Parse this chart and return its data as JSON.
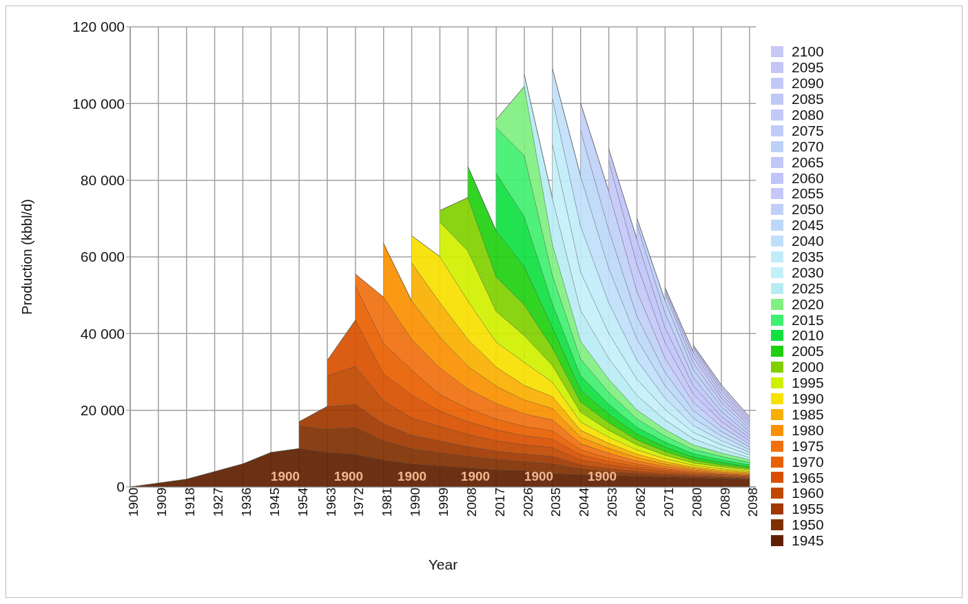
{
  "chart_data": {
    "type": "area",
    "stacked": true,
    "xlabel": "Year",
    "ylabel": "Production (kbbl/d)",
    "x": [
      1900,
      1909,
      1918,
      1927,
      1936,
      1945,
      1954,
      1963,
      1972,
      1981,
      1990,
      1999,
      2008,
      2017,
      2026,
      2035,
      2044,
      2053,
      2062,
      2071,
      2080,
      2089,
      2098
    ],
    "xlim": [
      1900,
      2100
    ],
    "xticks": [
      1900,
      1909,
      1918,
      1927,
      1936,
      1945,
      1954,
      1963,
      1972,
      1981,
      1990,
      1999,
      2008,
      2017,
      2026,
      2035,
      2044,
      2053,
      2062,
      2071,
      2080,
      2089,
      2098
    ],
    "ylim": [
      0,
      120000
    ],
    "yticks": [
      {
        "value": 0,
        "label": "0"
      },
      {
        "value": 20000,
        "label": "20 000"
      },
      {
        "value": 40000,
        "label": "40 000"
      },
      {
        "value": 60000,
        "label": "60 000"
      },
      {
        "value": 80000,
        "label": "80 000"
      },
      {
        "value": 100000,
        "label": "100 000"
      },
      {
        "value": 120000,
        "label": "120 000"
      }
    ],
    "grid": true,
    "legend": "right",
    "annotations": [
      "1900",
      "1900",
      "1900",
      "1900",
      "1900",
      "1900"
    ],
    "series": [
      {
        "name": "1945",
        "color": "#602000",
        "values": [
          0,
          1000,
          2000,
          4000,
          6000,
          9000,
          10000,
          9000,
          8500,
          7000,
          6000,
          5500,
          5000,
          4500,
          4200,
          3500,
          3200,
          3000,
          2800,
          2600,
          2400,
          2200,
          2000
        ]
      },
      {
        "name": "1950",
        "color": "#803000",
        "values": [
          null,
          null,
          null,
          null,
          null,
          null,
          6000,
          6000,
          7000,
          5000,
          4000,
          3500,
          3000,
          2700,
          2400,
          2500,
          1500,
          1000,
          700,
          500,
          400,
          300,
          200
        ]
      },
      {
        "name": "1955",
        "color": "#a03800",
        "values": [
          null,
          null,
          null,
          null,
          null,
          null,
          1000,
          6000,
          6000,
          4500,
          3500,
          3000,
          2500,
          2200,
          2000,
          2000,
          1100,
          800,
          600,
          400,
          300,
          200,
          200
        ]
      },
      {
        "name": "1960",
        "color": "#c04800",
        "values": [
          null,
          null,
          null,
          null,
          null,
          null,
          null,
          8000,
          10000,
          6000,
          4500,
          3800,
          3200,
          2700,
          2400,
          2300,
          1300,
          1000,
          700,
          500,
          300,
          300,
          200
        ]
      },
      {
        "name": "1965",
        "color": "#d85000",
        "values": [
          null,
          null,
          null,
          null,
          null,
          null,
          null,
          4000,
          12000,
          7000,
          6000,
          4000,
          3300,
          2800,
          2400,
          2200,
          1300,
          900,
          600,
          400,
          300,
          200,
          200
        ]
      },
      {
        "name": "1970",
        "color": "#e86000",
        "values": [
          null,
          null,
          null,
          null,
          null,
          null,
          null,
          null,
          9000,
          8000,
          6500,
          4300,
          3500,
          2900,
          2400,
          2200,
          1300,
          900,
          600,
          400,
          300,
          200,
          200
        ]
      },
      {
        "name": "1975",
        "color": "#f07010",
        "values": [
          null,
          null,
          null,
          null,
          null,
          null,
          null,
          null,
          3000,
          12000,
          8000,
          7000,
          5000,
          4000,
          3300,
          2800,
          1600,
          1200,
          800,
          600,
          400,
          300,
          200
        ]
      },
      {
        "name": "1980",
        "color": "#f89000",
        "values": [
          null,
          null,
          null,
          null,
          null,
          null,
          null,
          null,
          null,
          14000,
          10000,
          8000,
          6000,
          4500,
          3600,
          3000,
          1700,
          1300,
          900,
          600,
          400,
          300,
          300
        ]
      },
      {
        "name": "1985",
        "color": "#f8b000",
        "values": [
          null,
          null,
          null,
          null,
          null,
          null,
          null,
          null,
          null,
          null,
          10000,
          9000,
          7000,
          5000,
          3800,
          3100,
          1800,
          1300,
          900,
          600,
          400,
          400,
          300
        ]
      },
      {
        "name": "1990",
        "color": "#f8e000",
        "values": [
          null,
          null,
          null,
          null,
          null,
          null,
          null,
          null,
          null,
          null,
          7000,
          12000,
          10000,
          6500,
          6000,
          3700,
          2200,
          1600,
          1100,
          800,
          500,
          400,
          300
        ]
      },
      {
        "name": "1995",
        "color": "#d0f000",
        "values": [
          null,
          null,
          null,
          null,
          null,
          null,
          null,
          null,
          null,
          null,
          null,
          9000,
          13000,
          8000,
          7000,
          4400,
          2500,
          1800,
          1300,
          900,
          600,
          500,
          400
        ]
      },
      {
        "name": "2000",
        "color": "#80d000",
        "values": [
          null,
          null,
          null,
          null,
          null,
          null,
          null,
          null,
          null,
          null,
          null,
          3000,
          14000,
          9000,
          8000,
          4600,
          2700,
          2000,
          1300,
          1000,
          700,
          500,
          400
        ]
      },
      {
        "name": "2005",
        "color": "#20d010",
        "values": [
          null,
          null,
          null,
          null,
          null,
          null,
          null,
          null,
          null,
          null,
          null,
          null,
          8000,
          12000,
          10000,
          5300,
          3100,
          2200,
          1500,
          1100,
          800,
          600,
          400
        ]
      },
      {
        "name": "2010",
        "color": "#10e040",
        "values": [
          null,
          null,
          null,
          null,
          null,
          null,
          null,
          null,
          null,
          null,
          null,
          null,
          null,
          15000,
          13000,
          6200,
          3700,
          2600,
          1800,
          1300,
          900,
          700,
          500
        ]
      },
      {
        "name": "2015",
        "color": "#40f070",
        "values": [
          null,
          null,
          null,
          null,
          null,
          null,
          null,
          null,
          null,
          null,
          null,
          null,
          null,
          12000,
          16000,
          7400,
          4400,
          3100,
          2200,
          1600,
          1100,
          900,
          600
        ]
      },
      {
        "name": "2020",
        "color": "#80f080",
        "values": [
          null,
          null,
          null,
          null,
          null,
          null,
          null,
          null,
          null,
          null,
          null,
          null,
          null,
          2000,
          18000,
          8100,
          4700,
          3400,
          2300,
          1700,
          1200,
          900,
          700
        ]
      },
      {
        "name": "2025",
        "color": "#b8ecf4",
        "values": [
          null,
          null,
          null,
          null,
          null,
          null,
          null,
          null,
          null,
          null,
          null,
          null,
          null,
          null,
          3000,
          12000,
          8000,
          5500,
          3800,
          2500,
          1600,
          1000,
          600
        ]
      },
      {
        "name": "2030",
        "color": "#c4f0f8",
        "values": [
          null,
          null,
          null,
          null,
          null,
          null,
          null,
          null,
          null,
          null,
          null,
          null,
          null,
          null,
          null,
          14000,
          10000,
          6500,
          4200,
          2700,
          1700,
          1100,
          700
        ]
      },
      {
        "name": "2035",
        "color": "#c0ecfa",
        "values": [
          null,
          null,
          null,
          null,
          null,
          null,
          null,
          null,
          null,
          null,
          null,
          null,
          null,
          null,
          null,
          12000,
          12000,
          8000,
          5000,
          3000,
          1800,
          1100,
          700
        ]
      },
      {
        "name": "2040",
        "color": "#c0e0fa",
        "values": [
          null,
          null,
          null,
          null,
          null,
          null,
          null,
          null,
          null,
          null,
          null,
          null,
          null,
          null,
          null,
          7700,
          13000,
          9000,
          5500,
          3200,
          1900,
          1200,
          700
        ]
      },
      {
        "name": "2045",
        "color": "#bcd8f8",
        "values": [
          null,
          null,
          null,
          null,
          null,
          null,
          null,
          null,
          null,
          null,
          null,
          null,
          null,
          null,
          null,
          null,
          12000,
          10000,
          6000,
          3500,
          2000,
          1200,
          700
        ]
      },
      {
        "name": "2050",
        "color": "#c0d0f8",
        "values": [
          null,
          null,
          null,
          null,
          null,
          null,
          null,
          null,
          null,
          null,
          null,
          null,
          null,
          null,
          null,
          null,
          7000,
          10000,
          6500,
          3700,
          2100,
          1300,
          700
        ]
      },
      {
        "name": "2055",
        "color": "#c4c8f8",
        "values": [
          null,
          null,
          null,
          null,
          null,
          null,
          null,
          null,
          null,
          null,
          null,
          null,
          null,
          null,
          null,
          null,
          null,
          8000,
          7000,
          4000,
          2200,
          1300,
          800
        ]
      },
      {
        "name": "2060",
        "color": "#c0c4f8",
        "values": [
          null,
          null,
          null,
          null,
          null,
          null,
          null,
          null,
          null,
          null,
          null,
          null,
          null,
          null,
          null,
          null,
          null,
          3000,
          6500,
          4000,
          2200,
          1300,
          800
        ]
      },
      {
        "name": "2065",
        "color": "#c0c8f8",
        "values": [
          null,
          null,
          null,
          null,
          null,
          null,
          null,
          null,
          null,
          null,
          null,
          null,
          null,
          null,
          null,
          null,
          null,
          null,
          4000,
          3800,
          2100,
          1300,
          800
        ]
      },
      {
        "name": "2070",
        "color": "#bcd0f8",
        "values": [
          null,
          null,
          null,
          null,
          null,
          null,
          null,
          null,
          null,
          null,
          null,
          null,
          null,
          null,
          null,
          null,
          null,
          null,
          1500,
          3200,
          2000,
          1200,
          800
        ]
      },
      {
        "name": "2075",
        "color": "#c0ccf8",
        "values": [
          null,
          null,
          null,
          null,
          null,
          null,
          null,
          null,
          null,
          null,
          null,
          null,
          null,
          null,
          null,
          null,
          null,
          null,
          null,
          2000,
          1800,
          1200,
          700
        ]
      },
      {
        "name": "2080",
        "color": "#c4c8fa",
        "values": [
          null,
          null,
          null,
          null,
          null,
          null,
          null,
          null,
          null,
          null,
          null,
          null,
          null,
          null,
          null,
          null,
          null,
          null,
          null,
          900,
          1600,
          1100,
          700
        ]
      },
      {
        "name": "2085",
        "color": "#c0c8f8",
        "values": [
          null,
          null,
          null,
          null,
          null,
          null,
          null,
          null,
          null,
          null,
          null,
          null,
          null,
          null,
          null,
          null,
          null,
          null,
          null,
          500,
          1200,
          1000,
          700
        ]
      },
      {
        "name": "2090",
        "color": "#c4c8f8",
        "values": [
          null,
          null,
          null,
          null,
          null,
          null,
          null,
          null,
          null,
          null,
          null,
          null,
          null,
          null,
          null,
          null,
          null,
          null,
          null,
          null,
          1000,
          900,
          600
        ]
      },
      {
        "name": "2095",
        "color": "#c4c4f8",
        "values": [
          null,
          null,
          null,
          null,
          null,
          null,
          null,
          null,
          null,
          null,
          null,
          null,
          null,
          null,
          null,
          null,
          null,
          null,
          null,
          null,
          500,
          800,
          600
        ]
      },
      {
        "name": "2100",
        "color": "#c8c8f8",
        "values": [
          null,
          null,
          null,
          null,
          null,
          null,
          null,
          null,
          null,
          null,
          null,
          null,
          null,
          null,
          null,
          null,
          null,
          null,
          null,
          null,
          300,
          700,
          600
        ]
      }
    ]
  }
}
